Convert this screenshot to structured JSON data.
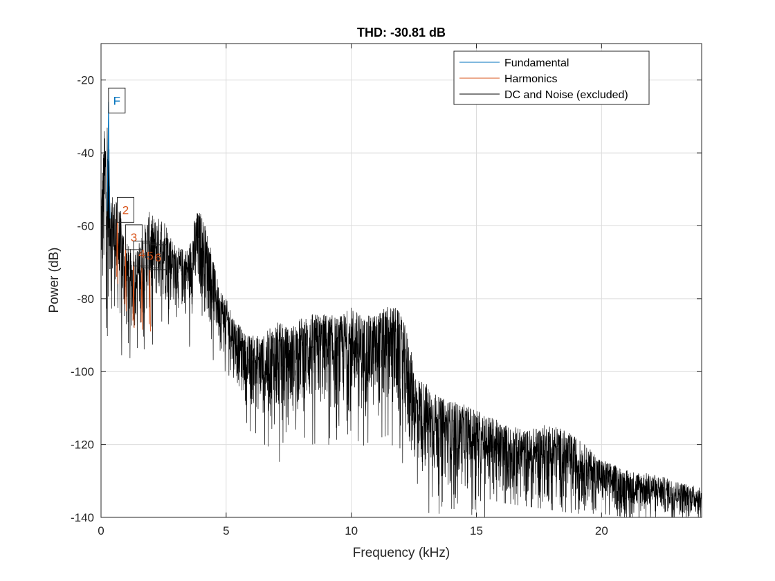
{
  "chart_data": {
    "type": "line",
    "title": "THD: -30.81 dB",
    "xlabel": "Frequency (kHz)",
    "ylabel": "Power (dB)",
    "xlim": [
      0,
      24
    ],
    "ylim": [
      -140,
      -10
    ],
    "xticks": [
      0,
      5,
      10,
      15,
      20
    ],
    "yticks": [
      -140,
      -120,
      -100,
      -80,
      -60,
      -40,
      -20
    ],
    "grid": true,
    "legend_position": "top-right",
    "legend": [
      {
        "name": "Fundamental",
        "color": "#0072BD"
      },
      {
        "name": "Harmonics",
        "color": "#D95319"
      },
      {
        "name": "DC and Noise (excluded)",
        "color": "#000000"
      }
    ],
    "fundamental": {
      "label": "F",
      "x": 0.3,
      "y": -26,
      "color": "#0072BD"
    },
    "harmonics": [
      {
        "label": "2",
        "x": 0.65,
        "y": -56,
        "color": "#D95319"
      },
      {
        "label": "3",
        "x": 0.98,
        "y": -63.5,
        "color": "#D95319"
      },
      {
        "label": "4",
        "x": 1.3,
        "y": -68,
        "color": "#D95319"
      },
      {
        "label": "5",
        "x": 1.63,
        "y": -68.5,
        "color": "#D95319"
      },
      {
        "label": "6",
        "x": 1.95,
        "y": -69,
        "color": "#D95319"
      }
    ],
    "noise_envelope": {
      "x": [
        0,
        0.05,
        0.15,
        0.25,
        0.4,
        0.6,
        0.8,
        1.0,
        1.3,
        1.6,
        1.9,
        2.2,
        2.5,
        3.0,
        3.5,
        3.8,
        4.0,
        4.3,
        4.7,
        5.0,
        5.4,
        5.8,
        6.5,
        7.0,
        7.5,
        8.0,
        8.5,
        9.0,
        9.5,
        10.0,
        10.5,
        11.0,
        11.5,
        11.8,
        12.2,
        12.6,
        13.0,
        13.5,
        14.0,
        15.0,
        16.0,
        17.0,
        18.0,
        19.0,
        20.0,
        21.0,
        22.0,
        23.0,
        24.0
      ],
      "upper": [
        -52,
        -44,
        -30,
        -28,
        -50,
        -53,
        -56,
        -64,
        -68,
        -63,
        -56,
        -58,
        -57,
        -66,
        -66,
        -56,
        -56,
        -63,
        -76,
        -80,
        -86,
        -90,
        -90,
        -86,
        -88,
        -85,
        -84,
        -84,
        -85,
        -82,
        -85,
        -84,
        -82,
        -82,
        -88,
        -101,
        -103,
        -107,
        -108,
        -110,
        -114,
        -116,
        -114,
        -118,
        -124,
        -127,
        -128,
        -130,
        -132
      ],
      "lower": [
        -70,
        -88,
        -86,
        -86,
        -80,
        -86,
        -90,
        -92,
        -90,
        -88,
        -86,
        -84,
        -82,
        -84,
        -86,
        -84,
        -82,
        -88,
        -94,
        -98,
        -104,
        -110,
        -114,
        -118,
        -114,
        -112,
        -113,
        -112,
        -114,
        -112,
        -113,
        -114,
        -112,
        -116,
        -124,
        -128,
        -131,
        -132,
        -132,
        -134,
        -136,
        -137,
        -138,
        -139,
        -139,
        -140,
        -140,
        -140,
        -140
      ]
    }
  }
}
